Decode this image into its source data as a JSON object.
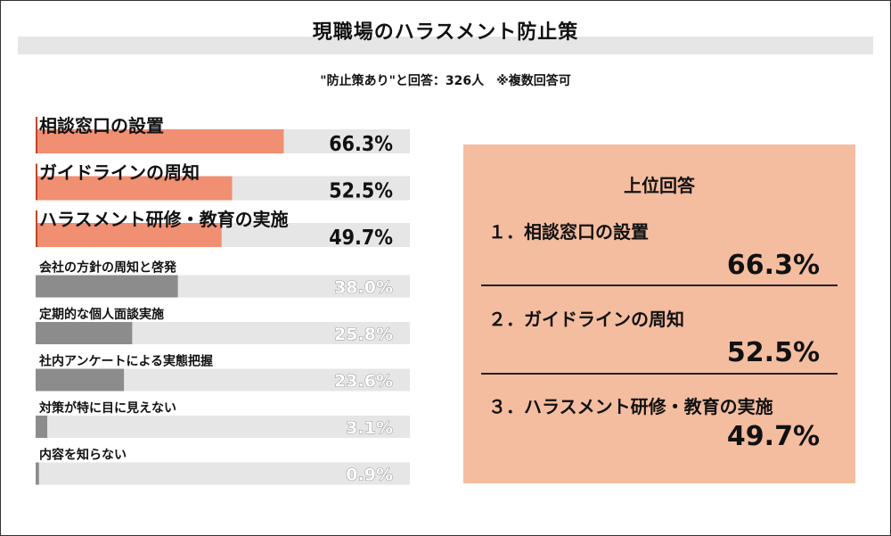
{
  "title": "現職場のハラスメント防止策",
  "subtitle": "\"防止策あり\"と回答：326人　※複数回答可",
  "chart_data": {
    "type": "bar",
    "orientation": "horizontal",
    "unit": "%",
    "categories": [
      "相談窓口の設置",
      "ガイドラインの周知",
      "ハラスメント研修・教育の実施",
      "会社の方針の周知と啓発",
      "定期的な個人面談実施",
      "社内アンケートによる実態把握",
      "対策が特に目に見えない",
      "内容を知らない"
    ],
    "values": [
      66.3,
      52.5,
      49.7,
      38.0,
      25.8,
      23.6,
      3.1,
      0.9
    ],
    "value_labels": [
      "66.3%",
      "52.5%",
      "49.7%",
      "38.0%",
      "25.8%",
      "23.6%",
      "3.1%",
      "0.9%"
    ],
    "xlim": [
      0,
      100
    ],
    "colors": {
      "highlight": "#f08f72",
      "normal": "#8c8c8c",
      "track": "#e6e6e6",
      "highlight_accent": "#c0432a"
    },
    "highlight_count": 3,
    "grid": false,
    "legend": "none"
  },
  "panel": {
    "heading": "上位回答",
    "items": [
      {
        "label": "１．相談窓口の設置",
        "value": "66.3%"
      },
      {
        "label": "２．ガイドラインの周知",
        "value": "52.5%"
      },
      {
        "label": "３．ハラスメント研修・教育の実施",
        "value": "49.7%"
      }
    ],
    "background": "#f4bd9f"
  }
}
